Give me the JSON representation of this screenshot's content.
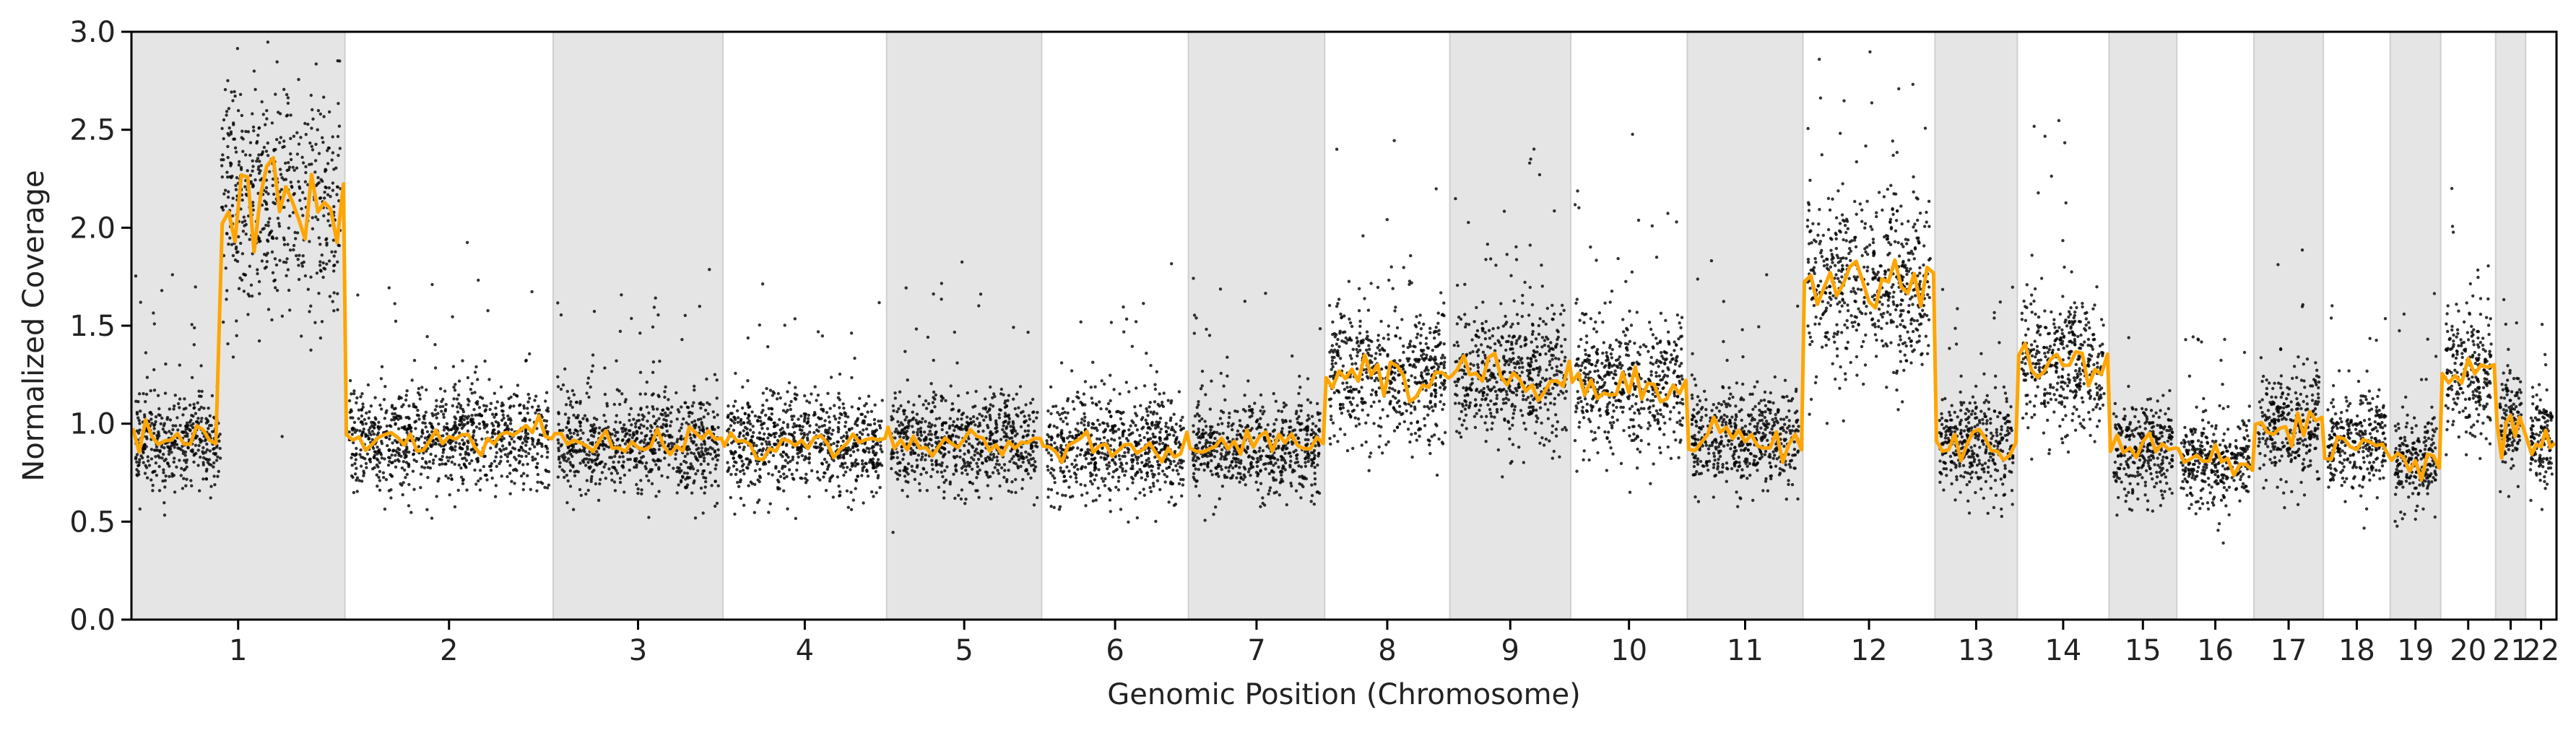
{
  "chart_data": {
    "type": "scatter",
    "title": "",
    "xlabel": "Genomic Position (Chromosome)",
    "ylabel": "Normalized Coverage",
    "ylim": [
      0,
      3
    ],
    "yticks": [
      "0.0",
      "0.5",
      "1.0",
      "1.5",
      "2.0",
      "2.5",
      "3.0"
    ],
    "grid": false,
    "legend": "none",
    "shading": "alternating grey bands mark odd chromosomes",
    "colors": {
      "points": "#000000",
      "segment_line": "#FFA500",
      "band": "#e5e5e5",
      "axes": "#000000"
    },
    "chromosomes": [
      {
        "name": "1",
        "length": 249,
        "level": 0.92,
        "amp_start": 0.42,
        "amp_level": 2.15
      },
      {
        "name": "2",
        "length": 243,
        "level": 0.92
      },
      {
        "name": "3",
        "length": 198,
        "level": 0.9
      },
      {
        "name": "4",
        "length": 191,
        "level": 0.9
      },
      {
        "name": "5",
        "length": 181,
        "level": 0.9
      },
      {
        "name": "6",
        "length": 171,
        "level": 0.88
      },
      {
        "name": "7",
        "length": 159,
        "level": 0.88
      },
      {
        "name": "8",
        "length": 146,
        "level": 1.25
      },
      {
        "name": "9",
        "length": 141,
        "level": 1.25
      },
      {
        "name": "10",
        "length": 136,
        "level": 1.2
      },
      {
        "name": "11",
        "length": 135,
        "level": 0.92
      },
      {
        "name": "12",
        "length": 154,
        "level": 1.7
      },
      {
        "name": "13",
        "length": 96,
        "level": 0.9
      },
      {
        "name": "14",
        "length": 107,
        "level": 1.3
      },
      {
        "name": "15",
        "length": 79,
        "level": 0.85
      },
      {
        "name": "16",
        "length": 90,
        "level": 0.8
      },
      {
        "name": "17",
        "length": 81,
        "level": 0.98
      },
      {
        "name": "18",
        "length": 78,
        "level": 0.9
      },
      {
        "name": "19",
        "length": 59,
        "level": 0.8
      },
      {
        "name": "20",
        "length": 64,
        "level": 1.25
      },
      {
        "name": "21",
        "length": 35,
        "level": 1.0
      },
      {
        "name": "22",
        "length": 36,
        "level": 0.92
      }
    ]
  }
}
